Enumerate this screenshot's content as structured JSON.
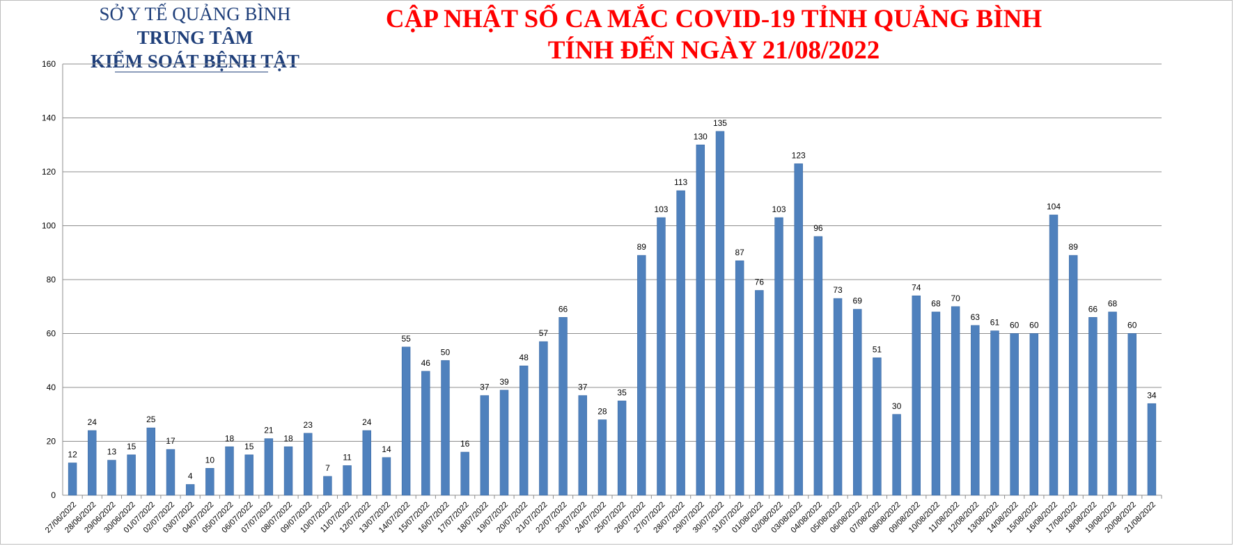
{
  "header": {
    "org_line1": "SỞ Y TẾ QUẢNG BÌNH",
    "org_line2": "TRUNG TÂM",
    "org_line3": "KIỂM SOÁT BỆNH TẬT",
    "title_line1": "CẬP NHẬT SỐ CA MẮC COVID-19 TỈNH QUẢNG BÌNH",
    "title_line2": "TÍNH ĐẾN NGÀY 21/08/2022"
  },
  "colors": {
    "bar": "#4f81bd",
    "bar_stroke": "#3a6aa6",
    "title": "#ff0000",
    "org": "#1f3f7a",
    "grid": "#8c8c8c"
  },
  "chart_data": {
    "type": "bar",
    "title": "",
    "xlabel": "",
    "ylabel": "",
    "ylim": [
      0,
      160
    ],
    "yticks": [
      0,
      20,
      40,
      60,
      80,
      100,
      120,
      140,
      160
    ],
    "grid": true,
    "data_labels": true,
    "categories": [
      "27/06/2022",
      "28/06/2022",
      "29/06/2022",
      "30/06/2022",
      "01/07/2022",
      "02/07/2022",
      "03/07/2022",
      "04/07/2022",
      "05/07/2022",
      "06/07/2022",
      "07/07/2022",
      "08/07/2022",
      "09/07/2022",
      "10/07/2022",
      "11/07/2022",
      "12/07/2022",
      "13/07/2022",
      "14/07/2022",
      "15/07/2022",
      "16/07/2022",
      "17/07/2022",
      "18/07/2022",
      "19/07/2022",
      "20/07/2022",
      "21/07/2022",
      "22/07/2022",
      "23/07/2022",
      "24/07/2022",
      "25/07/2022",
      "26/07/2022",
      "27/07/2022",
      "28/07/2022",
      "29/07/2022",
      "30/07/2022",
      "31/07/2022",
      "01/08/2022",
      "02/08/2022",
      "03/08/2022",
      "04/08/2022",
      "05/08/2022",
      "06/08/2022",
      "07/08/2022",
      "08/08/2022",
      "09/08/2022",
      "10/08/2022",
      "11/08/2022",
      "12/08/2022",
      "13/08/2022",
      "14/08/2022",
      "15/08/2022",
      "16/08/2022",
      "17/08/2022",
      "18/08/2022",
      "19/08/2022",
      "20/08/2022",
      "21/08/2022"
    ],
    "values": [
      12,
      24,
      13,
      15,
      25,
      17,
      4,
      10,
      18,
      15,
      21,
      18,
      23,
      7,
      11,
      24,
      14,
      55,
      46,
      50,
      16,
      37,
      39,
      48,
      57,
      66,
      37,
      28,
      35,
      89,
      103,
      113,
      130,
      135,
      87,
      76,
      103,
      123,
      96,
      73,
      69,
      51,
      30,
      74,
      68,
      70,
      63,
      61,
      60,
      60,
      104,
      89,
      66,
      68,
      60,
      34
    ]
  }
}
